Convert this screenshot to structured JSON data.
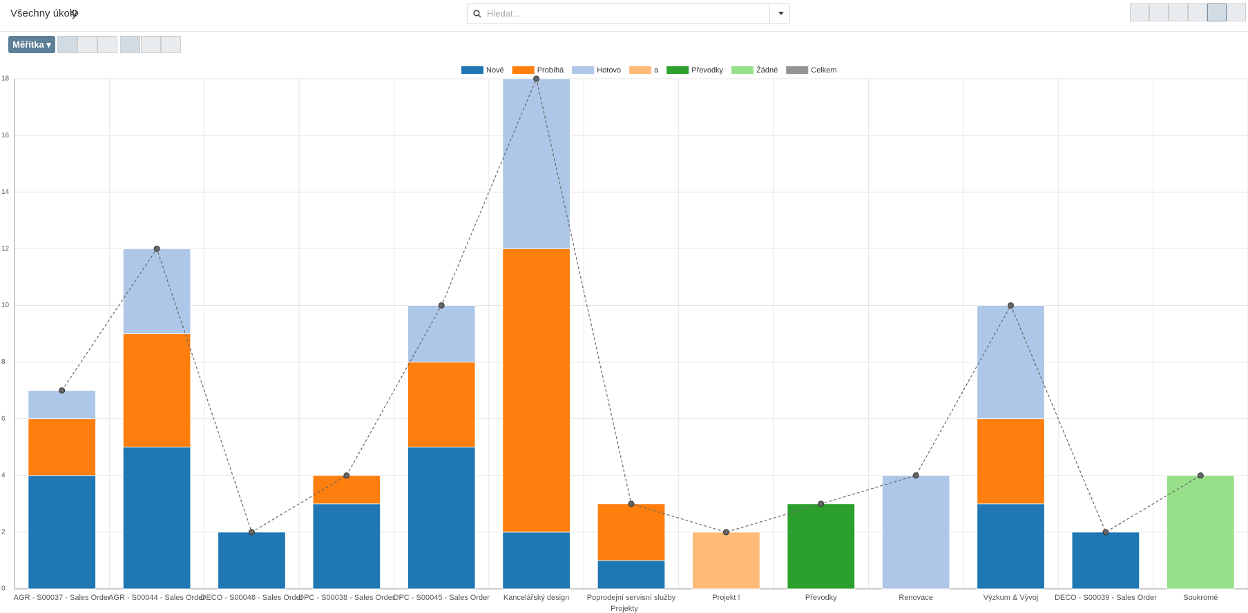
{
  "header": {
    "title": "Všechny úkoly",
    "search_placeholder": "Hledat..."
  },
  "toolbar": {
    "measures_button": "Měřítka"
  },
  "chart_data": {
    "type": "bar",
    "stacked": true,
    "x_label": "Projekty",
    "categories": [
      "AGR - S00037 - Sales Order",
      "AGR - S00044 - Sales Order",
      "DECO - S00046 - Sales Order",
      "DPC - S00038 - Sales Order",
      "DPC - S00045 - Sales Order",
      "Kancelářský design",
      "Poprodejní servisní služby",
      "Projekt !",
      "Převodky",
      "Renovace",
      "Výzkum & Vývoj",
      "DECO - S00039 - Sales Order",
      "Soukromé"
    ],
    "series": [
      {
        "name": "Nové",
        "color": "#1f77b4",
        "values": [
          4,
          5,
          2,
          3,
          5,
          2,
          1,
          null,
          null,
          null,
          3,
          2,
          null
        ]
      },
      {
        "name": "Probíhá",
        "color": "#ff7f0e",
        "values": [
          2,
          4,
          null,
          1,
          3,
          10,
          2,
          null,
          null,
          null,
          3,
          null,
          null
        ]
      },
      {
        "name": "Hotovo",
        "color": "#aec7e8",
        "values": [
          1,
          3,
          null,
          null,
          2,
          6,
          null,
          null,
          null,
          4,
          4,
          null,
          null
        ]
      },
      {
        "name": "a",
        "color": "#ffbb78",
        "values": [
          null,
          null,
          null,
          null,
          null,
          null,
          null,
          2,
          null,
          null,
          null,
          null,
          null
        ]
      },
      {
        "name": "Převodky",
        "color": "#2ca02c",
        "values": [
          null,
          null,
          null,
          null,
          null,
          null,
          null,
          null,
          3,
          null,
          null,
          null,
          null
        ]
      },
      {
        "name": "Žádné",
        "color": "#98df8a",
        "values": [
          null,
          null,
          null,
          null,
          null,
          null,
          null,
          null,
          null,
          null,
          null,
          null,
          4
        ]
      },
      {
        "name": "Celkem",
        "type": "line",
        "color": "#666666",
        "values": [
          7,
          12,
          2,
          4,
          10,
          18,
          3,
          2,
          3,
          4,
          10,
          2,
          4
        ]
      }
    ],
    "ylim": [
      0,
      18
    ],
    "yticks": [
      0,
      2,
      4,
      6,
      8,
      10,
      12,
      14,
      16,
      18
    ],
    "grid": true,
    "legend": "top"
  }
}
